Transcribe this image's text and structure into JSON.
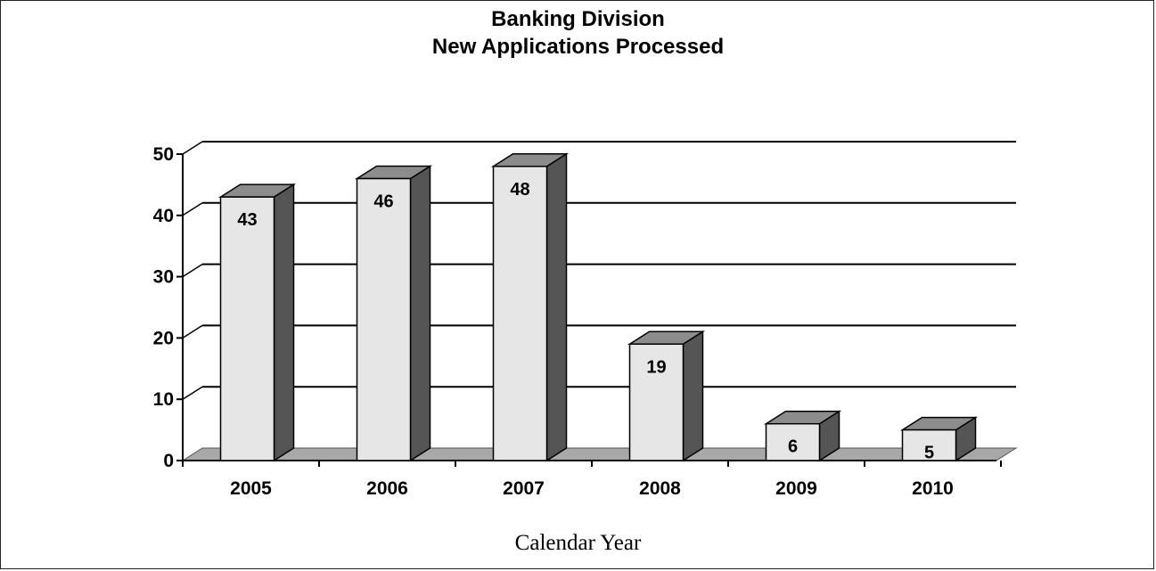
{
  "chart_data": {
    "type": "bar",
    "style": "3d-column",
    "title": "Banking Division",
    "subtitle": "New Applications Processed",
    "xlabel": "Calendar Year",
    "ylabel": "",
    "categories": [
      "2005",
      "2006",
      "2007",
      "2008",
      "2009",
      "2010"
    ],
    "values": [
      43,
      46,
      48,
      19,
      6,
      5
    ],
    "data_labels": [
      "43",
      "46",
      "48",
      "19",
      "6",
      "5"
    ],
    "ylim": [
      0,
      50
    ],
    "yticks": [
      "0",
      "10",
      "20",
      "30",
      "40",
      "50"
    ],
    "grid": true,
    "legend": "none"
  },
  "colors": {
    "bar_front": "#e6e6e6",
    "bar_top": "#8c8c8c",
    "bar_side": "#555555",
    "floor": "#a8a8a8",
    "gridline": "#000000",
    "background": "#ffffff"
  }
}
